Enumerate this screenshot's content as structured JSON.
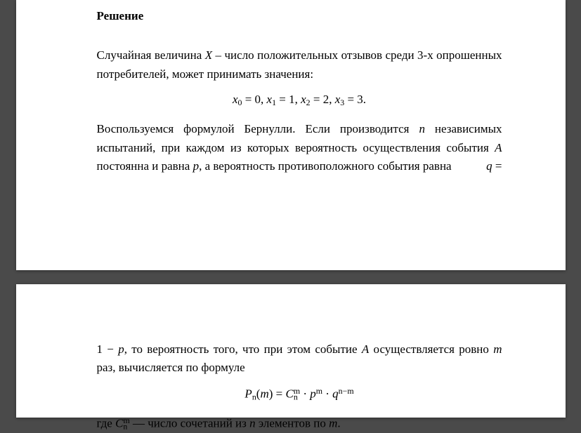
{
  "page1": {
    "heading": "Решение",
    "p1a": "Случайная величина ",
    "varX": "X",
    "p1b": " – число положительных отзывов среди 3-х опрошенных потребителей,  может принимать значения:",
    "eq1": {
      "x0l": "x",
      "x0s": "0",
      "x0v": " = 0,   ",
      "x1l": "x",
      "x1s": "1",
      "x1v": " = 1,   ",
      "x2l": "x",
      "x2s": "2",
      "x2v": " = 2,   ",
      "x3l": "x",
      "x3s": "3",
      "x3v": " = 3."
    },
    "p2a": "Воспользуемся формулой Бернулли. Если производится ",
    "var_n": "n",
    "p2b": " независимых испытаний, при каждом из которых вероятность осуществления события ",
    "var_A": "A",
    "p2c": " постоянна и равна ",
    "var_p": "p",
    "p2d": ", а вероятность противоположного события  равна",
    "var_q": "q",
    "eqsign": " ="
  },
  "page2": {
    "p1a": "1 − ",
    "var_p": "p",
    "p1b": ", то вероятность  того, что при этом событие ",
    "var_A": "A",
    "p1c": " осуществляется ровно ",
    "var_m": "m",
    "p1d": " раз, вычисляется по формуле",
    "eq2": {
      "P": "P",
      "n": "n",
      "open": "(",
      "m": "m",
      "close": ") = ",
      "C": "C",
      "Csub": "n",
      "Csup": "m",
      "dot1": " · ",
      "pbase": "p",
      "psup": "m",
      "dot2": " · ",
      "qbase": "q",
      "qsup": "n−m"
    },
    "p2a": "где ",
    "C": "C",
    "Csub": "n",
    "Csup": "m",
    "p2b": "  —  число сочетаний из ",
    "var_n": "n",
    "p2c": " элементов по ",
    "var_m2": "m",
    "p2d": "."
  }
}
